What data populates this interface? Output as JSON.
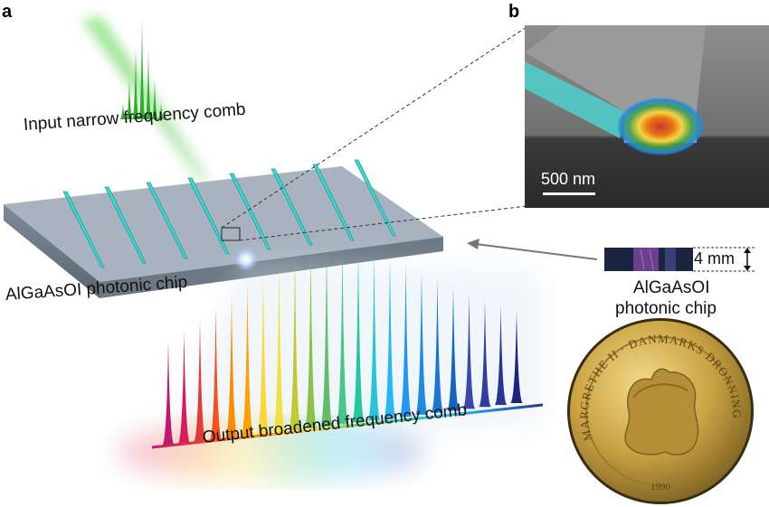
{
  "panels": {
    "a": "a",
    "b": "b"
  },
  "labels": {
    "input_comb": "Input narrow frequency comb",
    "output_comb": "Output broadened frequency comb",
    "chip": "AlGaAsOI photonic chip",
    "chip_photo_line1": "AlGaAsOI",
    "chip_photo_line2": "photonic chip",
    "chip_size": "4 mm",
    "scale_bar": "500 nm",
    "coin_text": "MARGRETHE II · DANMARKS DRONNING",
    "coin_year": "1990"
  },
  "colors": {
    "input_comb": "#2fae2a",
    "chip_top": "#9aa7b5",
    "waveguide": "#3fd7d2",
    "coin": "#c9a343"
  }
}
